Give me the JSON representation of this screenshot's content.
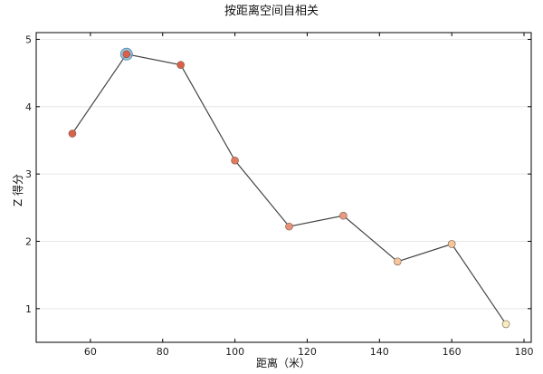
{
  "chart_data": {
    "type": "line",
    "title": "按距离空间自相关",
    "xlabel": "距离（米）",
    "ylabel": "Z 得分",
    "xlim": [
      45,
      182
    ],
    "ylim": [
      0.5,
      5.1
    ],
    "xticks": [
      60,
      80,
      100,
      120,
      140,
      160,
      180
    ],
    "yticks": [
      1,
      2,
      3,
      4,
      5
    ],
    "grid": "horizontal",
    "series": [
      {
        "x": [
          55,
          70,
          85,
          100,
          115,
          130,
          145,
          160,
          175
        ],
        "y": [
          3.6,
          4.78,
          4.62,
          3.2,
          2.22,
          2.38,
          1.7,
          1.96,
          0.77
        ]
      }
    ],
    "point_colors": [
      "#d9614a",
      "#d9614a",
      "#d9614a",
      "#e07b5e",
      "#e8917a",
      "#e89a82",
      "#f3c69b",
      "#f3c69b",
      "#f6eec0"
    ],
    "highlight_index": 1,
    "highlight_color": "#7fb3d5",
    "line_color": "#444444"
  }
}
